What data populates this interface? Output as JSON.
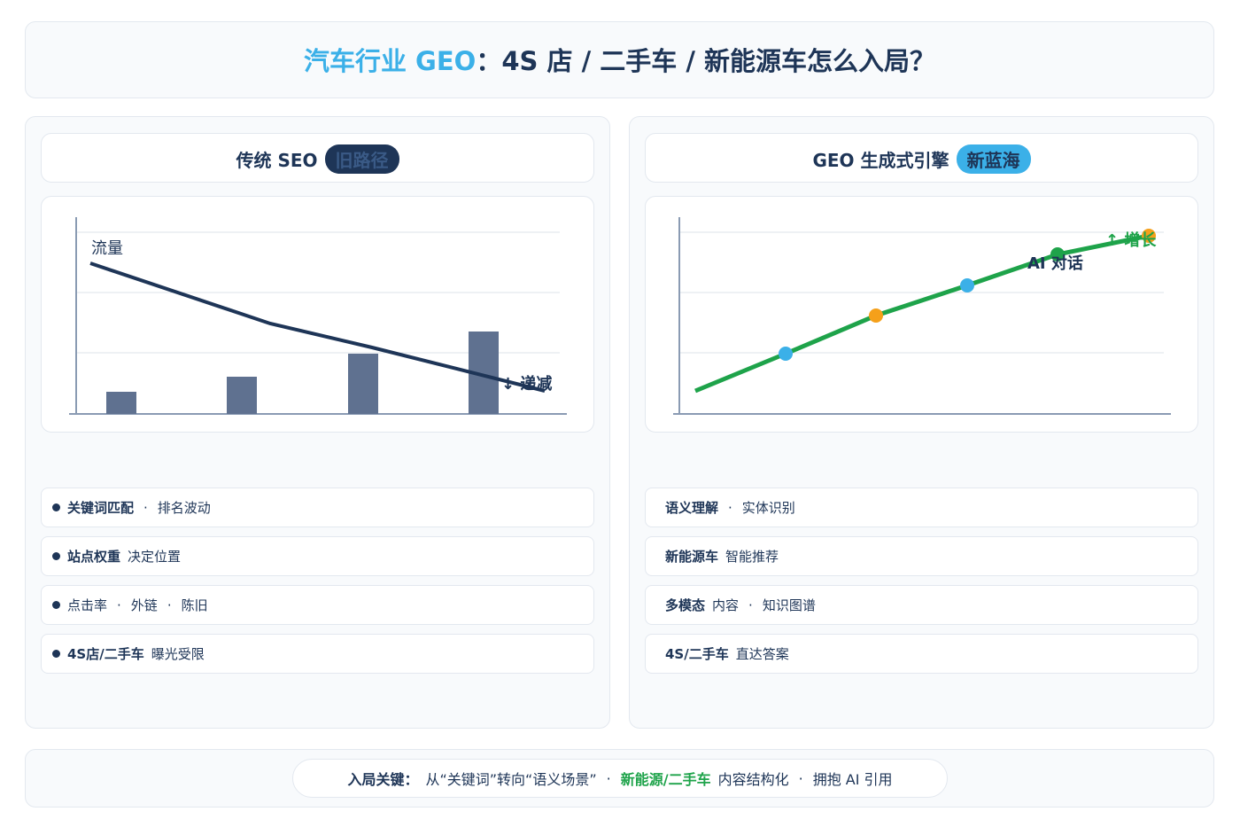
{
  "header": {
    "title_highlight": "汽车行业 GEO",
    "title_rest": "：4S 店 / 二手车 / 新能源车怎么入局？"
  },
  "panels": [
    {
      "title": "传统 SEO",
      "badge": "旧路径",
      "chart_labels": [
        "流量",
        "↓ 递减"
      ],
      "bullets": true,
      "items": [
        [
          {
            "text": "关键词匹配",
            "style": "bold"
          },
          {
            "text": "·",
            "style": "sep"
          },
          {
            "text": "排名波动",
            "style": "normal"
          }
        ],
        [
          {
            "text": "站点权重",
            "style": "bold"
          },
          {
            "text": "决定位置",
            "style": "normal"
          }
        ],
        [
          {
            "text": "点击率",
            "style": "normal"
          },
          {
            "text": "·",
            "style": "sep"
          },
          {
            "text": "外链",
            "style": "normal"
          },
          {
            "text": "·",
            "style": "sep"
          },
          {
            "text": "陈旧",
            "style": "normal"
          }
        ],
        [
          {
            "text": "4S店/二手车",
            "style": "bold"
          },
          {
            "text": "曝光受限",
            "style": "normal"
          }
        ]
      ]
    },
    {
      "title": "GEO 生成式引擎",
      "badge": "新蓝海",
      "chart_labels": [
        "AI 对话",
        "↑ 增长"
      ],
      "bullets": false,
      "items": [
        [
          {
            "text": "语义理解",
            "style": "bold"
          },
          {
            "text": "·",
            "style": "sep"
          },
          {
            "text": "实体识别",
            "style": "normal"
          }
        ],
        [
          {
            "text": "新能源车",
            "style": "bold"
          },
          {
            "text": "智能推荐",
            "style": "normal"
          }
        ],
        [
          {
            "text": "多模态",
            "style": "bold"
          },
          {
            "text": "内容",
            "style": "normal"
          },
          {
            "text": "·",
            "style": "sep"
          },
          {
            "text": "知识图谱",
            "style": "normal"
          }
        ],
        [
          {
            "text": "4S/二手车",
            "style": "bold"
          },
          {
            "text": "直达答案",
            "style": "normal"
          }
        ]
      ]
    }
  ],
  "footer": [
    {
      "text": "入局关键：",
      "style": "bold"
    },
    {
      "text": "从“关键词”转向“语义场景”",
      "style": "normal"
    },
    {
      "text": "·",
      "style": "sep"
    },
    {
      "text": "新能源/二手车",
      "style": "green"
    },
    {
      "text": "内容结构化",
      "style": "normal"
    },
    {
      "text": "·",
      "style": "sep"
    },
    {
      "text": "拥抱 AI 引用",
      "style": "normal"
    }
  ]
}
